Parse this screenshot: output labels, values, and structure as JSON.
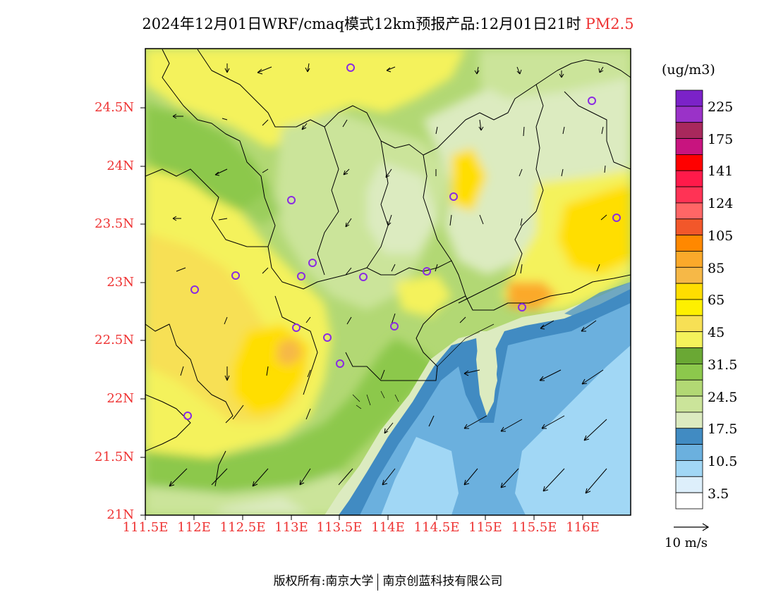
{
  "header": {
    "title": "2024年12月01日WRF/cmaq模式12km预报产品:12月01日21时",
    "pollutant": "PM2.5"
  },
  "map": {
    "lat_ticks": [
      "24.5N",
      "24N",
      "23.5N",
      "23N",
      "22.5N",
      "22N",
      "21.5N",
      "21N"
    ],
    "lon_ticks": [
      "111.5E",
      "112E",
      "112.5E",
      "113E",
      "113.5E",
      "114E",
      "114.5E",
      "115E",
      "115.5E",
      "116E"
    ],
    "lat_range": [
      21,
      25
    ],
    "lon_range": [
      111.5,
      116.5
    ],
    "colors": {
      "axis_label": "#ee3333",
      "site_marker": "#8a2be2"
    },
    "site_marker_icon": "circle-icon",
    "wind_arrow_icon": "arrow-icon"
  },
  "colorbar": {
    "units": "(ug/m3)",
    "labels": [
      "225",
      "175",
      "141",
      "124",
      "105",
      "85",
      "65",
      "45",
      "31.5",
      "24.5",
      "17.5",
      "10.5",
      "3.5"
    ],
    "colors": [
      "#7b22c8",
      "#9a32c8",
      "#a8285c",
      "#c8147f",
      "#ff0000",
      "#ff1a4a",
      "#ff3355",
      "#ff6666",
      "#f2572a",
      "#ff8800",
      "#fba92a",
      "#f6b847",
      "#ffde00",
      "#fef000",
      "#f7e055",
      "#f4f25b",
      "#6aa834",
      "#8cc84c",
      "#b2d874",
      "#cbe49a",
      "#dcebc0",
      "#418bc2",
      "#6bb0de",
      "#a1d7f5",
      "#ddeffb",
      "#ffffff"
    ]
  },
  "wind_reference": {
    "label": "10 m/s"
  },
  "footer": {
    "copyright": "版权所有:南京大学",
    "partner": "南京创蓝科技有限公司"
  }
}
